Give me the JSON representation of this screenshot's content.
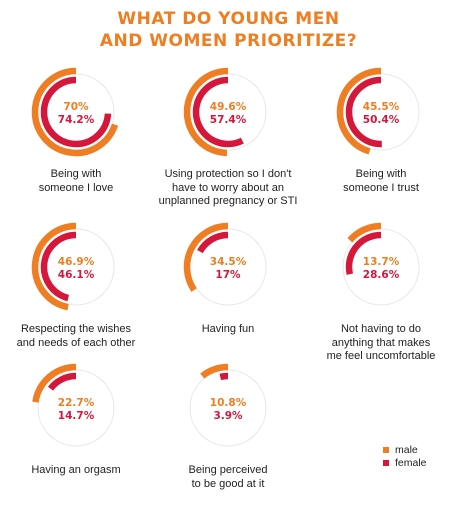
{
  "title": {
    "line1": "WHAT DO YOUNG MEN",
    "line2": "AND WOMEN PRIORITIZE?"
  },
  "colors": {
    "male": "#ef7d22",
    "female": "#d6173c",
    "track": "#e6e6e6"
  },
  "legend": {
    "male": "male",
    "female": "female"
  },
  "chart_data": {
    "type": "radial-bar",
    "title": "WHAT DO YOUNG MEN AND WOMEN PRIORITIZE?",
    "series": [
      {
        "name": "male",
        "color": "#ef7d22"
      },
      {
        "name": "female",
        "color": "#d6173c"
      }
    ],
    "items": [
      {
        "label": "Being with\nsomeone I love",
        "male": 70,
        "female": 74.2,
        "male_label": "70%",
        "female_label": "74.2%"
      },
      {
        "label": "Using protection so I don't\nhave to worry about an\nunplanned pregnancy or STI",
        "male": 49.6,
        "female": 57.4,
        "male_label": "49.6%",
        "female_label": "57.4%"
      },
      {
        "label": "Being with\nsomeone I trust",
        "male": 45.5,
        "female": 50.4,
        "male_label": "45.5%",
        "female_label": "50.4%"
      },
      {
        "label": "Respecting the wishes\nand needs of each other",
        "male": 46.9,
        "female": 46.1,
        "male_label": "46.9%",
        "female_label": "46.1%"
      },
      {
        "label": "Having fun",
        "male": 34.5,
        "female": 17,
        "male_label": "34.5%",
        "female_label": "17%"
      },
      {
        "label": "Not having to do\nanything that makes\nme feel uncomfortable",
        "male": 13.7,
        "female": 28.6,
        "male_label": "13.7%",
        "female_label": "28.6%"
      },
      {
        "label": "Having an orgasm",
        "male": 22.7,
        "female": 14.7,
        "male_label": "22.7%",
        "female_label": "14.7%"
      },
      {
        "label": "Being perceived\nto be good at it",
        "male": 10.8,
        "female": 3.9,
        "male_label": "10.8%",
        "female_label": "3.9%"
      }
    ]
  }
}
